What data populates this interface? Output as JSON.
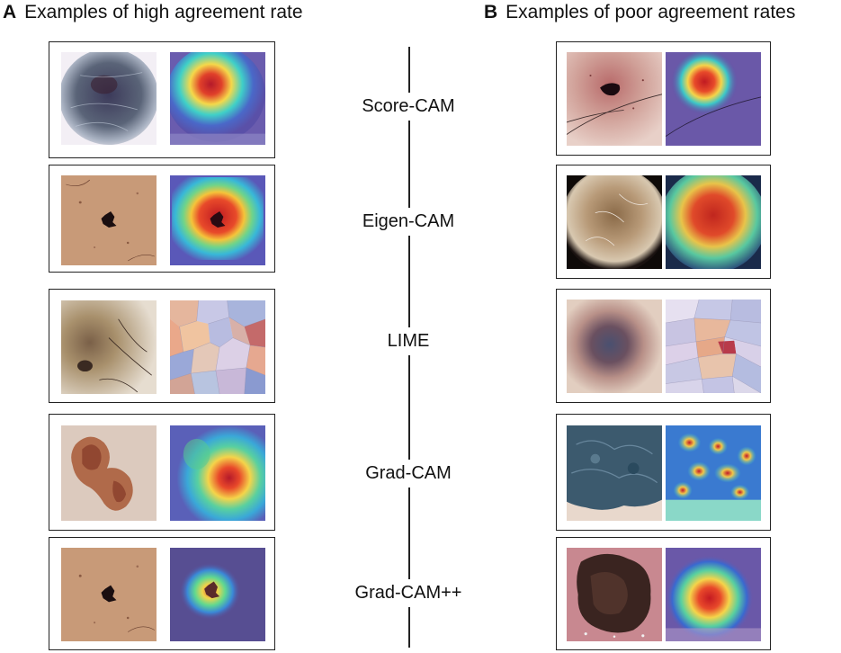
{
  "panel_a": {
    "letter": "A",
    "title": "Examples of high agreement rate"
  },
  "panel_b": {
    "letter": "B",
    "title": "Examples of poor agreement rates"
  },
  "methods": [
    "Score-CAM",
    "Eigen-CAM",
    "LIME",
    "Grad-CAM",
    "Grad-CAM++"
  ],
  "colors": {
    "heatmap_hot": "#d7261e",
    "heatmap_warm": "#f5e14a",
    "heatmap_mid": "#3fd0c8",
    "heatmap_cold": "#5a50a8",
    "skin_light": "#e9c7a6",
    "frame": "#222222"
  }
}
